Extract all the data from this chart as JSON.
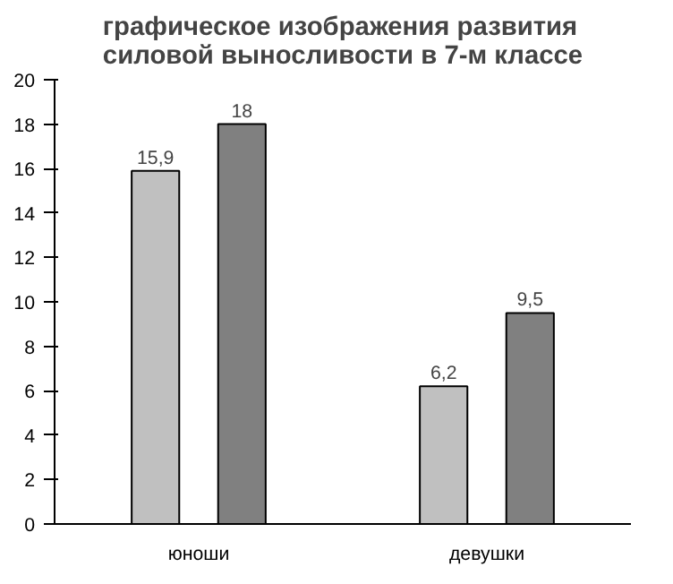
{
  "chart_data": {
    "type": "bar",
    "title": "графическое изображения развития\nсиловой выносливости в 7-м классе",
    "categories": [
      "юноши",
      "девушки"
    ],
    "series": [
      {
        "color": "#c0c0c0",
        "values": [
          15.9,
          6.2
        ],
        "value_labels": [
          "15,9",
          "6,2"
        ]
      },
      {
        "color": "#808080",
        "values": [
          18,
          9.5
        ],
        "value_labels": [
          "18",
          "9,5"
        ]
      }
    ],
    "ylim": [
      0,
      20
    ],
    "yticks": [
      0,
      2,
      4,
      6,
      8,
      10,
      12,
      14,
      16,
      18,
      20
    ],
    "grid": false
  }
}
